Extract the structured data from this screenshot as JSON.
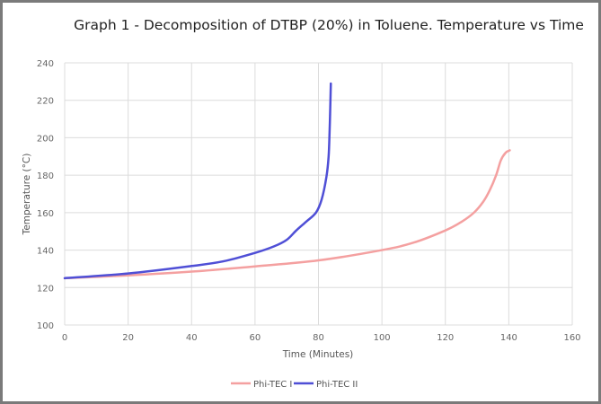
{
  "chart_data": {
    "type": "line",
    "title": "Graph 1 - Decomposition of DTBP (20%) in Toluene. Temperature vs Time",
    "xlabel": "Time (Minutes)",
    "ylabel": "Temperature (°C)",
    "xlim": [
      0,
      160
    ],
    "ylim": [
      100,
      240
    ],
    "xticks": [
      "0",
      "20",
      "40",
      "60",
      "80",
      "100",
      "120",
      "140",
      "160"
    ],
    "yticks": [
      "100",
      "120",
      "140",
      "160",
      "180",
      "200",
      "220",
      "240"
    ],
    "grid": true,
    "legend": "bottom",
    "series": [
      {
        "name": "Phi-TEC I",
        "color": "#f4a0a0",
        "x": [
          0,
          20,
          40,
          60,
          80,
          100,
          110,
          120,
          125,
          129,
          132,
          134,
          136,
          137.5,
          139,
          140.3
        ],
        "y": [
          125,
          126.5,
          128.5,
          131.3,
          134.5,
          140,
          144,
          150.5,
          155,
          160,
          166,
          172,
          180,
          188,
          192,
          193.3
        ]
      },
      {
        "name": "Phi-TEC II",
        "color": "#4f4fd6",
        "x": [
          0,
          20,
          40,
          50,
          60,
          66,
          70,
          73,
          76,
          79.2,
          81,
          82.5,
          83.2,
          83.5,
          83.7,
          83.9
        ],
        "y": [
          125,
          127.5,
          131.5,
          134,
          138.5,
          142,
          145.5,
          150.5,
          155,
          160,
          167,
          179,
          190,
          203,
          215,
          229
        ]
      }
    ]
  }
}
